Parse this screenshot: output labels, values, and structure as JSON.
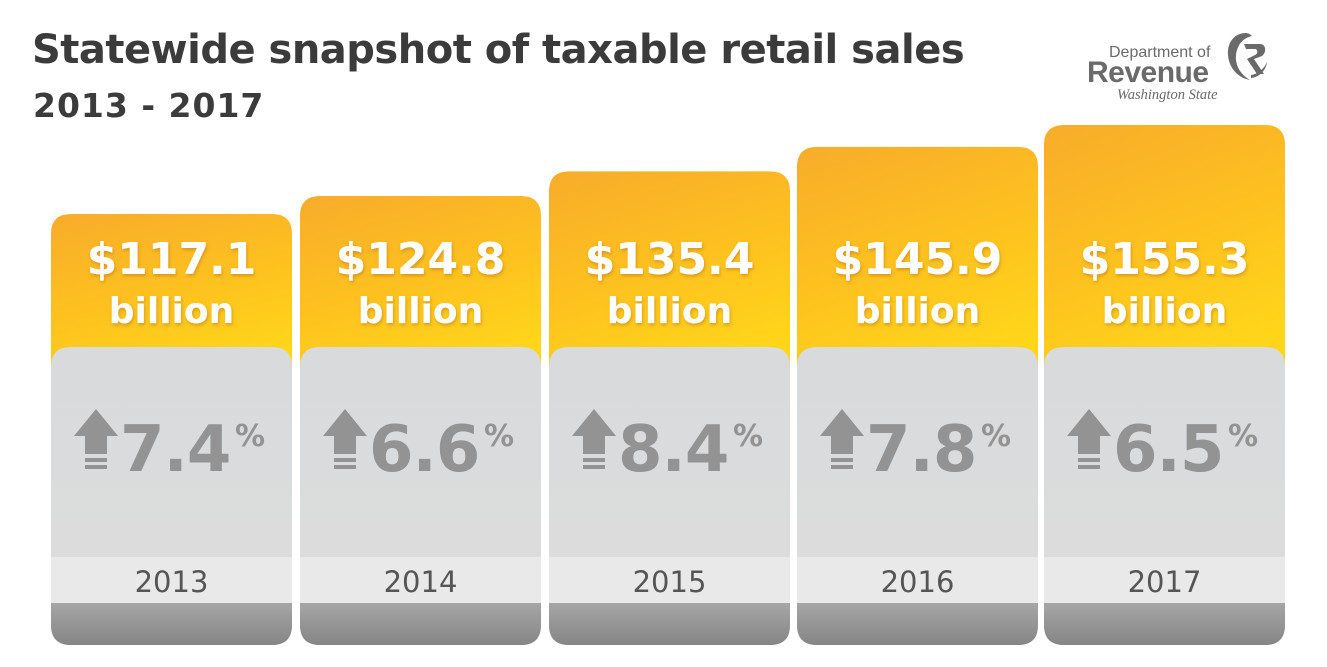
{
  "header": {
    "title": "Statewide snapshot of taxable retail sales",
    "subtitle": "2013 - 2017"
  },
  "logo": {
    "line1": "Department of",
    "line2": "Revenue",
    "line3": "Washington State",
    "icon": "revenue-swirl-logo"
  },
  "colors": {
    "gold_light": "#ffc61e",
    "gold_dark": "#f8ad2c",
    "gray_panel": "#d7d9db",
    "gray_arrow": "#939393",
    "year_band": "#e9e9e9",
    "bottom_band": "#8e8e8e",
    "text_dark": "#3b3b3b"
  },
  "chart_data": {
    "type": "bar",
    "categories": [
      "2013",
      "2014",
      "2015",
      "2016",
      "2017"
    ],
    "values": [
      117.1,
      124.8,
      135.4,
      145.9,
      155.3
    ],
    "value_labels": [
      "$117.1",
      "$124.8",
      "$135.4",
      "$145.9",
      "$155.3"
    ],
    "unit_label": "billion",
    "growth": [
      7.4,
      6.6,
      8.4,
      7.8,
      6.5
    ],
    "growth_labels": [
      "7.4",
      "6.6",
      "8.4",
      "7.8",
      "6.5"
    ],
    "growth_suffix": "%",
    "growth_icon": "up-arrow-icon",
    "title": "Statewide snapshot of taxable retail sales",
    "subtitle": "2013 - 2017",
    "ylim": [
      0,
      160
    ]
  }
}
